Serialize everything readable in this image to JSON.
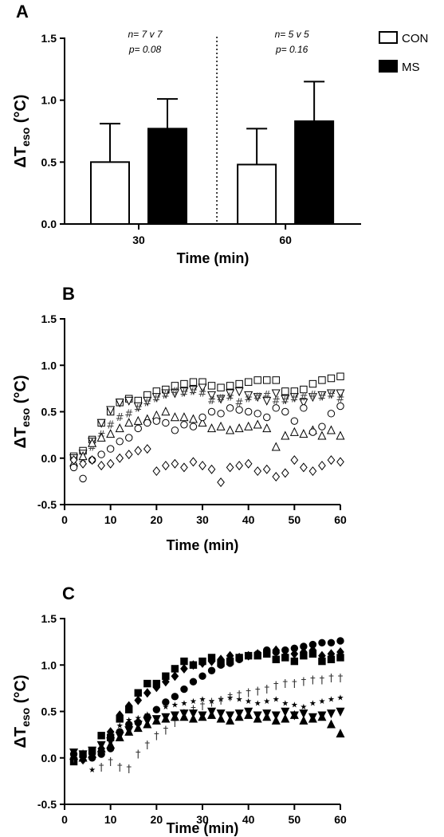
{
  "chart_data": [
    {
      "panel": "A",
      "type": "bar",
      "categories": [
        "30",
        "60"
      ],
      "series": [
        {
          "name": "CON",
          "values": [
            0.5,
            0.48
          ],
          "errors": [
            0.31,
            0.29
          ],
          "color": "#ffffff"
        },
        {
          "name": "MS",
          "values": [
            0.77,
            0.83
          ],
          "errors": [
            0.24,
            0.32
          ],
          "color": "#000000"
        }
      ],
      "annotations": [
        {
          "category": "30",
          "lines": [
            "n= 7 v 7",
            "p= 0.08"
          ]
        },
        {
          "category": "60",
          "lines": [
            "n= 5 v 5",
            "p= 0.16"
          ]
        }
      ],
      "xlabel": "Time (min)",
      "ylabel": {
        "main": "ΔT",
        "sub": "eso",
        "unit": " (°C)"
      },
      "ylim": [
        0,
        1.5
      ],
      "yticks": [
        "0.0",
        "0.5",
        "1.0",
        "1.5"
      ],
      "legend_placement": "top-right",
      "divider": "dotted"
    },
    {
      "panel": "B",
      "type": "scatter",
      "xlabel": "Time (min)",
      "ylabel": {
        "main": "ΔT",
        "sub": "eso",
        "unit": " (°C)"
      },
      "xlim": [
        0,
        60
      ],
      "ylim": [
        -0.5,
        1.5
      ],
      "xticks": [
        "0",
        "10",
        "20",
        "30",
        "40",
        "50",
        "60"
      ],
      "yticks": [
        "-0.5",
        "0.0",
        "0.5",
        "1.0",
        "1.5"
      ],
      "series": [
        {
          "marker": "square-open",
          "x": [
            2,
            4,
            6,
            8,
            10,
            12,
            14,
            16,
            18,
            20,
            22,
            24,
            26,
            28,
            30,
            32,
            34,
            36,
            38,
            40,
            42,
            44,
            46,
            48,
            50,
            52,
            54,
            56,
            58,
            60
          ],
          "y": [
            0.02,
            0.08,
            0.2,
            0.38,
            0.5,
            0.6,
            0.64,
            0.62,
            0.68,
            0.72,
            0.74,
            0.78,
            0.8,
            0.82,
            0.82,
            0.78,
            0.76,
            0.78,
            0.8,
            0.82,
            0.84,
            0.84,
            0.84,
            0.72,
            0.72,
            0.74,
            0.8,
            0.84,
            0.86,
            0.88
          ]
        },
        {
          "marker": "triangle-down-open",
          "x": [
            2,
            4,
            6,
            8,
            10,
            12,
            14,
            16,
            18,
            20,
            22,
            24,
            26,
            28,
            30,
            32,
            34,
            36,
            38,
            40,
            42,
            44,
            46,
            48,
            50,
            52,
            54,
            56,
            58,
            60
          ],
          "y": [
            0.0,
            0.05,
            0.18,
            0.38,
            0.52,
            0.6,
            0.62,
            0.56,
            0.62,
            0.66,
            0.7,
            0.7,
            0.72,
            0.74,
            0.76,
            0.68,
            0.64,
            0.7,
            0.72,
            0.68,
            0.66,
            0.62,
            0.7,
            0.64,
            0.66,
            0.6,
            0.66,
            0.68,
            0.7,
            0.7
          ]
        },
        {
          "marker": "hash",
          "x": [
            2,
            4,
            6,
            8,
            10,
            12,
            14,
            16,
            18,
            20,
            22,
            24,
            26,
            28,
            30,
            32,
            34,
            36,
            38,
            40,
            42,
            44,
            46,
            48,
            50,
            52,
            54,
            56,
            58,
            60
          ],
          "y": [
            -0.08,
            -0.02,
            0.12,
            0.25,
            0.36,
            0.44,
            0.48,
            0.54,
            0.6,
            0.64,
            0.68,
            0.72,
            0.7,
            0.72,
            0.7,
            0.62,
            0.64,
            0.66,
            0.6,
            0.64,
            0.66,
            0.68,
            0.62,
            0.62,
            0.64,
            0.66,
            0.68,
            0.66,
            0.68,
            0.64
          ]
        },
        {
          "marker": "triangle-up-open",
          "x": [
            2,
            4,
            6,
            8,
            10,
            12,
            14,
            16,
            18,
            20,
            22,
            24,
            26,
            28,
            30,
            32,
            34,
            36,
            38,
            40,
            42,
            44,
            46,
            48,
            50,
            52,
            54,
            56,
            58,
            60
          ],
          "y": [
            -0.05,
            0.02,
            0.16,
            0.22,
            0.26,
            0.32,
            0.38,
            0.4,
            0.42,
            0.46,
            0.5,
            0.44,
            0.44,
            0.42,
            0.38,
            0.32,
            0.34,
            0.3,
            0.32,
            0.34,
            0.36,
            0.32,
            0.12,
            0.24,
            0.28,
            0.26,
            0.3,
            0.24,
            0.3,
            0.24
          ]
        },
        {
          "marker": "circle-open",
          "x": [
            2,
            4,
            6,
            8,
            10,
            12,
            14,
            16,
            18,
            20,
            22,
            24,
            26,
            28,
            30,
            32,
            34,
            36,
            38,
            40,
            42,
            44,
            46,
            48,
            50,
            52,
            54,
            56,
            58,
            60
          ],
          "y": [
            -0.1,
            -0.22,
            -0.02,
            0.04,
            0.1,
            0.18,
            0.22,
            0.32,
            0.38,
            0.4,
            0.38,
            0.3,
            0.36,
            0.34,
            0.44,
            0.5,
            0.48,
            0.54,
            0.52,
            0.5,
            0.48,
            0.44,
            0.54,
            0.5,
            0.4,
            0.54,
            0.28,
            0.34,
            0.48,
            0.56
          ]
        },
        {
          "marker": "diamond-open",
          "x": [
            2,
            4,
            6,
            8,
            10,
            12,
            14,
            16,
            18,
            20,
            22,
            24,
            26,
            28,
            30,
            32,
            34,
            36,
            38,
            40,
            42,
            44,
            46,
            48,
            50,
            52,
            54,
            56,
            58,
            60
          ],
          "y": [
            -0.02,
            -0.06,
            -0.02,
            -0.08,
            -0.06,
            0.0,
            0.04,
            0.08,
            0.1,
            -0.14,
            -0.08,
            -0.06,
            -0.1,
            -0.04,
            -0.08,
            -0.12,
            -0.26,
            -0.1,
            -0.08,
            -0.06,
            -0.14,
            -0.12,
            -0.2,
            -0.16,
            -0.02,
            -0.1,
            -0.14,
            -0.08,
            -0.02,
            -0.04
          ]
        }
      ]
    },
    {
      "panel": "C",
      "type": "scatter",
      "xlabel": "Time (min)",
      "ylabel": {
        "main": "ΔT",
        "sub": "eso",
        "unit": " (°C)"
      },
      "xlim": [
        0,
        60
      ],
      "ylim": [
        -0.5,
        1.5
      ],
      "xticks": [
        "0",
        "10",
        "20",
        "30",
        "40",
        "50",
        "60"
      ],
      "yticks": [
        "-0.5",
        "0.0",
        "0.5",
        "1.0",
        "1.5"
      ],
      "series": [
        {
          "marker": "circle-filled",
          "x": [
            2,
            4,
            6,
            8,
            10,
            12,
            14,
            16,
            18,
            20,
            22,
            24,
            26,
            28,
            30,
            32,
            34,
            36,
            38,
            40,
            42,
            44,
            46,
            48,
            50,
            52,
            54,
            56,
            58,
            60
          ],
          "y": [
            0.04,
            0.02,
            0.0,
            0.04,
            0.1,
            0.28,
            0.36,
            0.38,
            0.44,
            0.52,
            0.6,
            0.66,
            0.74,
            0.82,
            0.88,
            0.94,
            1.0,
            1.02,
            1.06,
            1.1,
            1.12,
            1.16,
            1.14,
            1.16,
            1.18,
            1.2,
            1.22,
            1.24,
            1.24,
            1.26
          ]
        },
        {
          "marker": "square-filled",
          "x": [
            2,
            4,
            6,
            8,
            10,
            12,
            14,
            16,
            18,
            20,
            22,
            24,
            26,
            28,
            30,
            32,
            34,
            36,
            38,
            40,
            42,
            44,
            46,
            48,
            50,
            52,
            54,
            56,
            58,
            60
          ],
          "y": [
            -0.04,
            0.04,
            0.08,
            0.24,
            0.22,
            0.42,
            0.52,
            0.7,
            0.8,
            0.8,
            0.88,
            0.96,
            1.04,
            1.0,
            1.04,
            1.08,
            1.02,
            1.04,
            1.08,
            1.1,
            1.1,
            1.12,
            1.06,
            1.08,
            1.04,
            1.1,
            1.12,
            1.04,
            1.06,
            1.08
          ]
        },
        {
          "marker": "diamond-filled",
          "x": [
            2,
            4,
            6,
            8,
            10,
            12,
            14,
            16,
            18,
            20,
            22,
            24,
            26,
            28,
            30,
            32,
            34,
            36,
            38,
            40,
            42,
            44,
            46,
            48,
            50,
            52,
            54,
            56,
            58,
            60
          ],
          "y": [
            0.0,
            -0.02,
            0.04,
            0.1,
            0.28,
            0.46,
            0.56,
            0.62,
            0.7,
            0.76,
            0.82,
            0.88,
            0.96,
            1.0,
            1.02,
            1.04,
            1.06,
            1.1,
            1.08,
            1.1,
            1.12,
            1.14,
            1.16,
            1.1,
            1.12,
            1.14,
            1.16,
            1.1,
            1.12,
            1.14
          ]
        },
        {
          "marker": "star",
          "x": [
            2,
            4,
            6,
            8,
            10,
            12,
            14,
            16,
            18,
            20,
            22,
            24,
            26,
            28,
            30,
            32,
            34,
            36,
            38,
            40,
            42,
            44,
            46,
            48,
            50,
            52,
            54,
            56,
            58,
            60
          ],
          "y": [
            0.02,
            -0.02,
            -0.12,
            0.1,
            0.2,
            0.36,
            0.42,
            0.44,
            0.48,
            0.52,
            0.56,
            0.58,
            0.6,
            0.62,
            0.64,
            0.62,
            0.64,
            0.66,
            0.64,
            0.62,
            0.6,
            0.62,
            0.64,
            0.6,
            0.58,
            0.56,
            0.6,
            0.62,
            0.64,
            0.66
          ]
        },
        {
          "marker": "dagger",
          "x": [
            2,
            4,
            6,
            8,
            10,
            12,
            14,
            16,
            18,
            20,
            22,
            24,
            26,
            28,
            30,
            32,
            34,
            36,
            38,
            40,
            42,
            44,
            46,
            48,
            50,
            52,
            54,
            56,
            58,
            60
          ],
          "y": [
            0.0,
            0.04,
            0.06,
            -0.1,
            -0.04,
            -0.1,
            -0.12,
            0.04,
            0.14,
            0.24,
            0.3,
            0.38,
            0.48,
            0.52,
            0.56,
            0.6,
            0.62,
            0.66,
            0.68,
            0.7,
            0.72,
            0.74,
            0.78,
            0.8,
            0.8,
            0.82,
            0.84,
            0.84,
            0.86,
            0.86
          ]
        },
        {
          "marker": "triangle-down-filled",
          "x": [
            2,
            4,
            6,
            8,
            10,
            12,
            14,
            16,
            18,
            20,
            22,
            24,
            26,
            28,
            30,
            32,
            34,
            36,
            38,
            40,
            42,
            44,
            46,
            48,
            50,
            52,
            54,
            56,
            58,
            60
          ],
          "y": [
            0.06,
            0.04,
            0.08,
            0.14,
            0.18,
            0.24,
            0.3,
            0.36,
            0.4,
            0.42,
            0.44,
            0.46,
            0.48,
            0.48,
            0.46,
            0.5,
            0.48,
            0.46,
            0.48,
            0.5,
            0.46,
            0.48,
            0.46,
            0.5,
            0.46,
            0.48,
            0.44,
            0.46,
            0.48,
            0.5
          ]
        },
        {
          "marker": "triangle-up-filled",
          "x": [
            2,
            4,
            6,
            8,
            10,
            12,
            14,
            16,
            18,
            20,
            22,
            24,
            26,
            28,
            30,
            32,
            34,
            36,
            38,
            40,
            42,
            44,
            46,
            48,
            50,
            52,
            54,
            56,
            58,
            60
          ],
          "y": [
            0.02,
            0.0,
            0.04,
            0.1,
            0.14,
            0.22,
            0.28,
            0.32,
            0.36,
            0.4,
            0.42,
            0.44,
            0.44,
            0.42,
            0.44,
            0.46,
            0.42,
            0.4,
            0.44,
            0.46,
            0.42,
            0.44,
            0.4,
            0.42,
            0.46,
            0.4,
            0.42,
            0.44,
            0.36,
            0.26
          ]
        }
      ]
    }
  ]
}
